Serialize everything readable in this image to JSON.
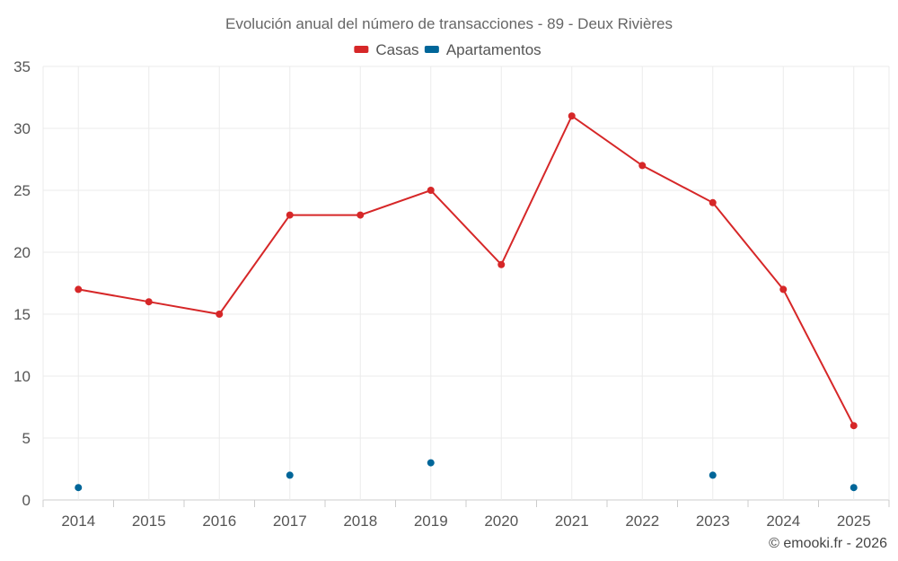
{
  "chart_data": {
    "type": "line",
    "title": "Evolución anual del número de transacciones - 89 - Deux Rivières",
    "categories": [
      "2014",
      "2015",
      "2016",
      "2017",
      "2018",
      "2019",
      "2020",
      "2021",
      "2022",
      "2023",
      "2024",
      "2025"
    ],
    "series": [
      {
        "name": "Casas",
        "color": "#d62728",
        "values": [
          17,
          16,
          15,
          23,
          23,
          25,
          19,
          31,
          27,
          24,
          17,
          6
        ],
        "style": "line"
      },
      {
        "name": "Apartamentos",
        "color": "#006699",
        "values": [
          1,
          null,
          null,
          2,
          null,
          3,
          null,
          null,
          null,
          2,
          null,
          1
        ],
        "style": "markers"
      }
    ],
    "ylim": [
      0,
      35
    ],
    "yticks": [
      0,
      5,
      10,
      15,
      20,
      25,
      30,
      35
    ],
    "xlabel": "",
    "ylabel": "",
    "grid": true,
    "legend_position": "top-center"
  },
  "credit": "© emooki.fr - 2026"
}
